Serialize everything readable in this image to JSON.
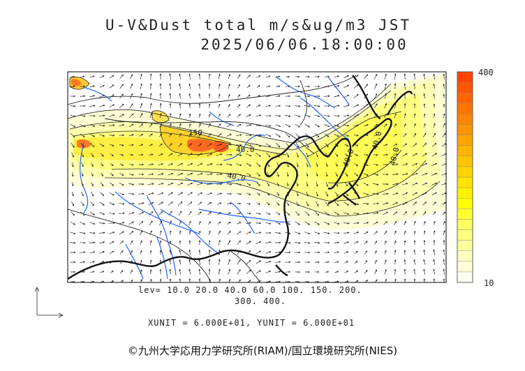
{
  "title": {
    "line1": "U-V&Dust total m/s&ug/m3 JST",
    "line2": "2025/06/06.18:00:00"
  },
  "levels": {
    "line1": "lev= 10.0 20.0 40.0 60.0 100. 150. 200.",
    "line2": "300. 400."
  },
  "units": "XUNIT = 6.000E+01, YUNIT = 6.000E+01",
  "colorbar": {
    "max_label": "400",
    "min_label": "10",
    "colors": [
      "#fffef0",
      "#ffffd8",
      "#ffffc0",
      "#ffffa0",
      "#ffff80",
      "#ffff60",
      "#ffff30",
      "#ffff00",
      "#fff200",
      "#ffe400",
      "#ffd400",
      "#ffc400",
      "#ffb400",
      "#ffa400",
      "#ff9400",
      "#ff8400",
      "#ff7400",
      "#ff6400",
      "#ff5400",
      "#ff4400"
    ]
  },
  "contour_labels": [
    "150",
    "40.0",
    "40.0",
    "40.0",
    "40.0",
    "40.0"
  ],
  "credit": "©九州大学応用力学研究所(RIAM)/国立環境研究所(NIES)",
  "colors": {
    "frame": "#000000",
    "rivers": "#1f5fff",
    "coast": "#000000",
    "dust_low": "#ffff99",
    "dust_high": "#ff4400"
  }
}
